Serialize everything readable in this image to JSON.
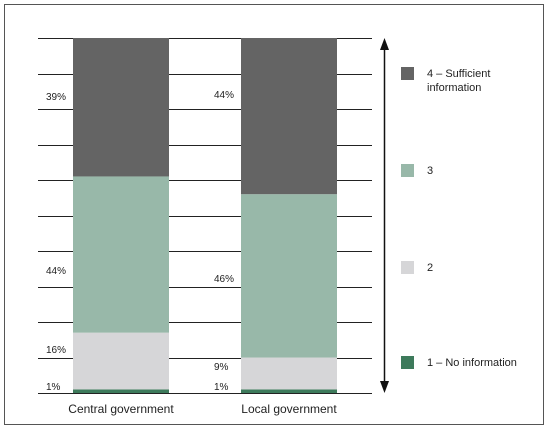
{
  "chart_data": {
    "type": "bar",
    "stacked": true,
    "categories": [
      "Central government",
      "Local government"
    ],
    "series": [
      {
        "name": "1 – No information",
        "values": [
          1,
          1
        ],
        "value_labels": [
          "1%",
          "1%"
        ],
        "color": "#3d7a5b"
      },
      {
        "name": "2",
        "values": [
          16,
          9
        ],
        "value_labels": [
          "16%",
          "9%"
        ],
        "color": "#d6d6d8"
      },
      {
        "name": "3",
        "values": [
          44,
          46
        ],
        "value_labels": [
          "44%",
          "46%"
        ],
        "color": "#98b8a9"
      },
      {
        "name": "4 – Sufficient information",
        "values": [
          39,
          44
        ],
        "value_labels": [
          "39%",
          "44%"
        ],
        "color": "#646464"
      }
    ],
    "legend_order": [
      {
        "line1": "4 – Sufficient",
        "line2": "information",
        "color": "#646464"
      },
      {
        "line1": "3",
        "line2": "",
        "color": "#98b8a9"
      },
      {
        "line1": "2",
        "line2": "",
        "color": "#d6d6d8"
      },
      {
        "line1": "1 – No information",
        "line2": "",
        "color": "#3d7a5b"
      }
    ],
    "ylim": [
      0,
      100
    ],
    "grid": true,
    "legend_position": "right",
    "double_arrow": true
  }
}
